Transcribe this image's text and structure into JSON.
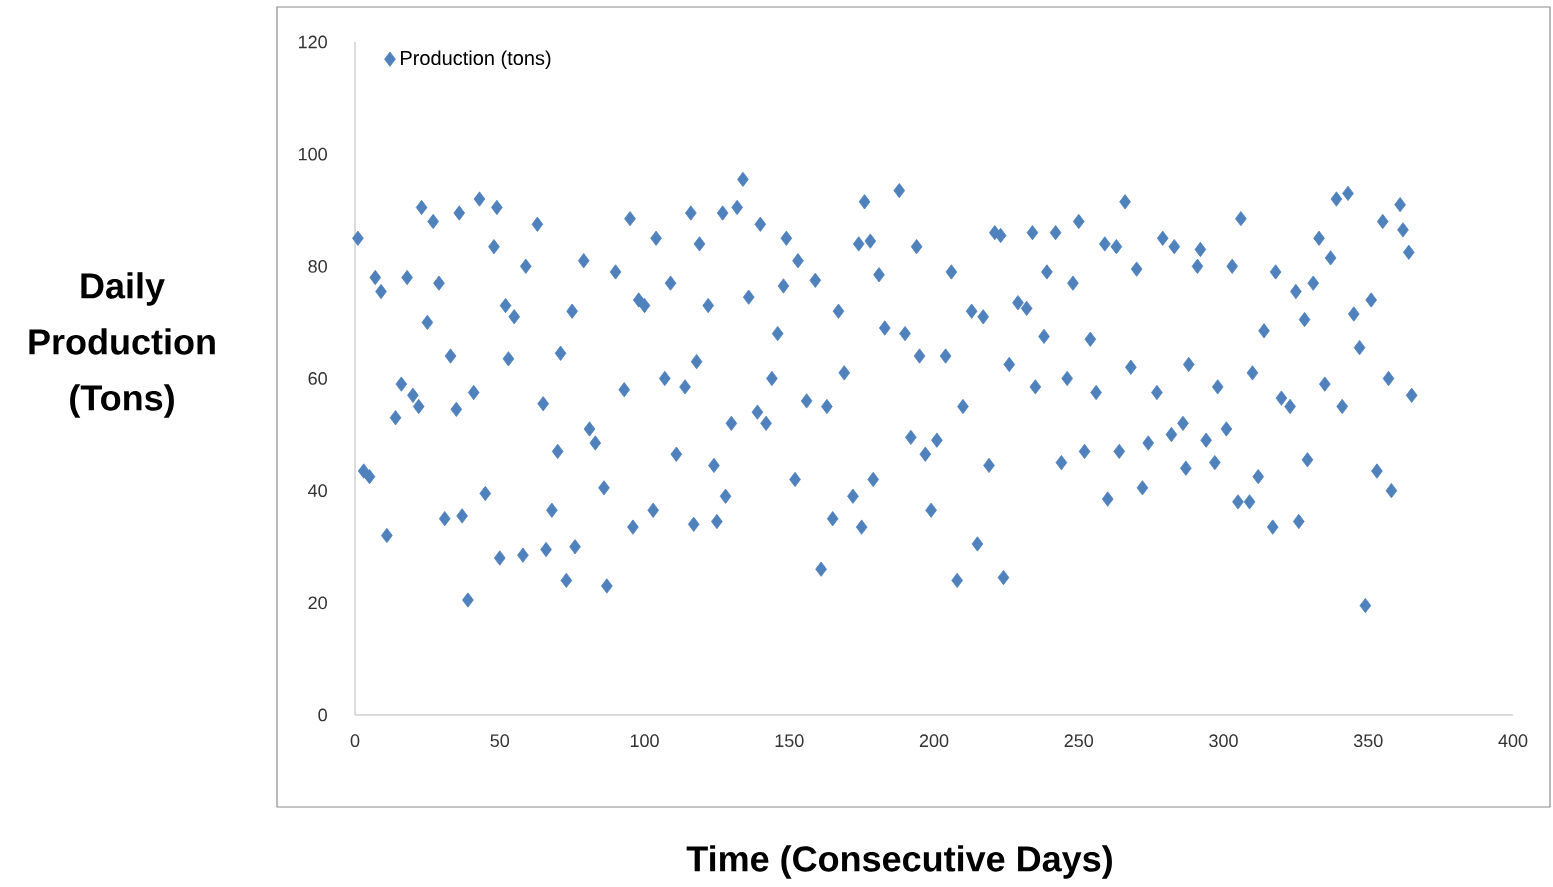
{
  "chart_data": {
    "type": "scatter",
    "xlabel": "Time (Consecutive Days)",
    "ylabel": "Daily Production (Tons)",
    "xlim": [
      0,
      400
    ],
    "xticks": [
      0,
      50,
      100,
      150,
      200,
      250,
      300,
      350,
      400
    ],
    "ylim": [
      0,
      120
    ],
    "yticks": [
      0,
      20,
      40,
      60,
      80,
      100,
      120
    ],
    "grid": false,
    "legend": "top left",
    "marker": "diamond",
    "series": [
      {
        "name": "Production (tons)",
        "color": "#4f81bd",
        "x": [
          1,
          3,
          5,
          7,
          9,
          11,
          14,
          16,
          18,
          20,
          22,
          23,
          25,
          27,
          29,
          31,
          33,
          35,
          36,
          37,
          39,
          41,
          43,
          45,
          48,
          49,
          50,
          52,
          53,
          55,
          58,
          59,
          63,
          65,
          66,
          68,
          70,
          71,
          73,
          75,
          76,
          79,
          81,
          83,
          86,
          87,
          90,
          93,
          95,
          96,
          98,
          100,
          103,
          104,
          107,
          109,
          111,
          114,
          116,
          117,
          118,
          119,
          122,
          124,
          125,
          127,
          128,
          130,
          132,
          134,
          136,
          139,
          140,
          142,
          144,
          146,
          148,
          149,
          152,
          153,
          156,
          159,
          161,
          163,
          165,
          167,
          169,
          172,
          174,
          175,
          176,
          178,
          179,
          181,
          183,
          188,
          190,
          192,
          194,
          195,
          197,
          199,
          201,
          204,
          206,
          208,
          210,
          213,
          215,
          217,
          219,
          221,
          223,
          224,
          226,
          229,
          232,
          234,
          235,
          238,
          239,
          242,
          244,
          246,
          248,
          250,
          252,
          254,
          256,
          259,
          260,
          263,
          264,
          266,
          268,
          270,
          272,
          274,
          277,
          279,
          282,
          283,
          286,
          287,
          288,
          291,
          292,
          294,
          297,
          298,
          301,
          303,
          305,
          306,
          309,
          310,
          312,
          314,
          317,
          318,
          320,
          323,
          325,
          326,
          328,
          329,
          331,
          333,
          335,
          337,
          339,
          341,
          343,
          345,
          347,
          349,
          351,
          353,
          355,
          357,
          358,
          361,
          362,
          364,
          365
        ],
        "values": [
          85,
          43.5,
          42.5,
          78,
          75.5,
          32,
          53,
          59,
          78,
          57,
          55,
          90.5,
          70,
          88,
          77,
          35,
          64,
          54.5,
          89.5,
          35.5,
          20.5,
          57.5,
          92,
          39.5,
          83.5,
          90.5,
          28,
          73,
          63.5,
          71,
          28.5,
          80,
          87.5,
          55.5,
          29.5,
          36.5,
          47,
          64.5,
          24,
          72,
          30,
          81,
          51,
          48.5,
          40.5,
          23,
          79,
          58,
          88.5,
          33.5,
          74,
          73,
          36.5,
          85,
          60,
          77,
          46.5,
          58.5,
          89.5,
          34,
          63,
          84,
          73,
          44.5,
          34.5,
          89.5,
          39,
          52,
          90.5,
          95.5,
          74.5,
          54,
          87.5,
          52,
          60,
          68,
          76.5,
          85,
          42,
          81,
          56,
          77.5,
          26,
          55,
          35,
          72,
          61,
          39,
          84,
          33.5,
          91.5,
          84.5,
          42,
          78.5,
          69,
          93.5,
          68,
          49.5,
          83.5,
          64,
          46.5,
          36.5,
          49,
          64,
          79,
          24,
          55,
          72,
          30.5,
          71,
          44.5,
          86,
          85.5,
          24.5,
          62.5,
          73.5,
          72.5,
          86,
          58.5,
          67.5,
          79,
          86,
          45,
          60,
          77,
          88,
          47,
          67,
          57.5,
          84,
          38.5,
          83.5,
          47,
          91.5,
          62,
          79.5,
          40.5,
          48.5,
          57.5,
          85,
          50,
          83.5,
          52,
          44,
          62.5,
          80,
          83,
          49,
          45,
          58.5,
          51,
          80,
          38,
          88.5,
          38,
          61,
          42.5,
          68.5,
          33.5,
          79,
          56.5,
          55,
          75.5,
          34.5,
          70.5,
          45.5,
          77,
          85,
          59,
          81.5,
          92,
          55,
          93,
          71.5,
          65.5,
          19.5,
          74,
          43.5,
          88,
          60,
          40,
          91,
          86.5,
          82.5,
          57
        ]
      }
    ]
  }
}
